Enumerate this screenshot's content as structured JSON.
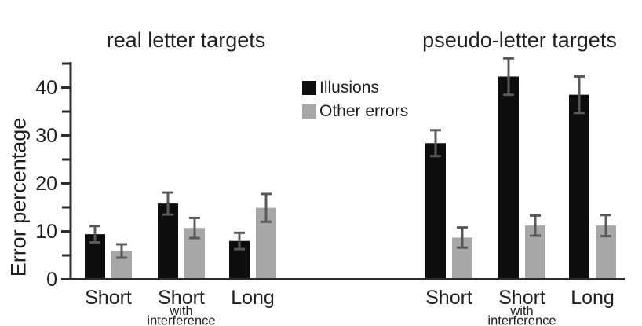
{
  "figure_title": "Error percentage bar chart",
  "y_axis": {
    "label": "Error percentage",
    "major_ticks": [
      0,
      10,
      20,
      30,
      40
    ],
    "minor_ticks": [
      5,
      15,
      25,
      35,
      45
    ]
  },
  "legend": [
    {
      "label": "Illusions",
      "color": "#0d0d0d"
    },
    {
      "label": "Other errors",
      "color": "#a7a7a7"
    }
  ],
  "colors": {
    "illusions_bar": "#0d0d0d",
    "other_errors_bar": "#a7a7a7",
    "error_whisker": "#595959",
    "axis": "#2b2b2b",
    "text": "#1f1f1f",
    "background": "#ffffff"
  },
  "chart_data": {
    "type": "bar",
    "ylabel": "Error percentage",
    "xlabel": "",
    "ylim": [
      0,
      45
    ],
    "grid": false,
    "legend_position": "top center, between panels",
    "panels": [
      {
        "title": "real letter targets",
        "categories": [
          [
            "Short"
          ],
          [
            "Short",
            "with",
            "interference"
          ],
          [
            "Long"
          ]
        ],
        "series": [
          {
            "name": "Illusions",
            "values": [
              9.4,
              15.8,
              8.0
            ],
            "errors": [
              1.7,
              2.3,
              1.7
            ]
          },
          {
            "name": "Other errors",
            "values": [
              5.9,
              10.7,
              14.9
            ],
            "errors": [
              1.4,
              2.1,
              2.9
            ]
          }
        ]
      },
      {
        "title": "pseudo-letter targets",
        "categories": [
          [
            "Short"
          ],
          [
            "Short",
            "with",
            "interference"
          ],
          [
            "Long"
          ]
        ],
        "series": [
          {
            "name": "Illusions",
            "values": [
              28.4,
              42.3,
              38.5
            ],
            "errors": [
              2.7,
              3.8,
              3.8
            ]
          },
          {
            "name": "Other errors",
            "values": [
              8.7,
              11.2,
              11.2
            ],
            "errors": [
              2.1,
              2.1,
              2.2
            ]
          }
        ]
      }
    ]
  }
}
